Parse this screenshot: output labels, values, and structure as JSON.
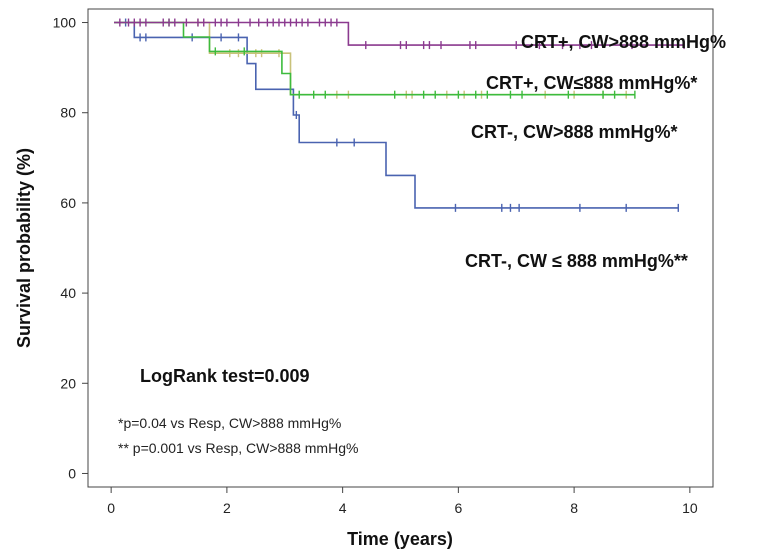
{
  "chart_data": {
    "type": "line",
    "step": true,
    "xlabel": "Time (years)",
    "ylabel": "Survival probability (%)",
    "xlim": [
      -0.4,
      10.4
    ],
    "ylim": [
      -3,
      103
    ],
    "xticks": [
      0,
      2,
      4,
      6,
      8,
      10
    ],
    "yticks": [
      0,
      20,
      40,
      60,
      80,
      100
    ],
    "grid": false,
    "series": [
      {
        "name": "CRT+, CW>888 mmHg%",
        "color": "#8B3A8F",
        "steps": [
          [
            0.05,
            100
          ],
          [
            4.1,
            100
          ],
          [
            4.1,
            95
          ],
          [
            9.9,
            95
          ]
        ],
        "censors": [
          [
            0.15,
            100
          ],
          [
            0.3,
            100
          ],
          [
            0.4,
            100
          ],
          [
            0.5,
            100
          ],
          [
            0.6,
            100
          ],
          [
            0.9,
            100
          ],
          [
            1.0,
            100
          ],
          [
            1.1,
            100
          ],
          [
            1.3,
            100
          ],
          [
            1.5,
            100
          ],
          [
            1.6,
            100
          ],
          [
            1.8,
            100
          ],
          [
            1.9,
            100
          ],
          [
            2.0,
            100
          ],
          [
            2.2,
            100
          ],
          [
            2.4,
            100
          ],
          [
            2.55,
            100
          ],
          [
            2.7,
            100
          ],
          [
            2.8,
            100
          ],
          [
            2.9,
            100
          ],
          [
            3.0,
            100
          ],
          [
            3.1,
            100
          ],
          [
            3.2,
            100
          ],
          [
            3.3,
            100
          ],
          [
            3.4,
            100
          ],
          [
            3.6,
            100
          ],
          [
            3.7,
            100
          ],
          [
            3.8,
            100
          ],
          [
            3.9,
            100
          ],
          [
            4.4,
            95
          ],
          [
            5.0,
            95
          ],
          [
            5.1,
            95
          ],
          [
            5.4,
            95
          ],
          [
            5.5,
            95
          ],
          [
            5.7,
            95
          ],
          [
            6.2,
            95
          ],
          [
            6.3,
            95
          ],
          [
            7.0,
            95
          ],
          [
            7.4,
            95
          ],
          [
            7.8,
            95
          ],
          [
            8.1,
            95
          ],
          [
            8.3,
            95
          ],
          [
            9.0,
            95
          ],
          [
            9.9,
            95
          ]
        ]
      },
      {
        "name": "CRT+, CW≤888 mmHg%*",
        "color": "#3DBB3D",
        "steps": [
          [
            0.05,
            100
          ],
          [
            1.25,
            100
          ],
          [
            1.25,
            96.8
          ],
          [
            1.7,
            96.8
          ],
          [
            1.7,
            93.6
          ],
          [
            2.95,
            93.6
          ],
          [
            2.95,
            88.7
          ],
          [
            3.1,
            88.7
          ],
          [
            3.1,
            84
          ],
          [
            9.05,
            84
          ]
        ],
        "censors": [
          [
            1.0,
            100
          ],
          [
            1.8,
            93.6
          ],
          [
            2.3,
            93.6
          ],
          [
            3.25,
            84
          ],
          [
            3.5,
            84
          ],
          [
            3.7,
            84
          ],
          [
            4.9,
            84
          ],
          [
            5.4,
            84
          ],
          [
            5.6,
            84
          ],
          [
            6.0,
            84
          ],
          [
            6.3,
            84
          ],
          [
            6.5,
            84
          ],
          [
            6.9,
            84
          ],
          [
            7.1,
            84
          ],
          [
            7.9,
            84
          ],
          [
            8.5,
            84
          ],
          [
            8.7,
            84
          ],
          [
            9.05,
            84
          ]
        ]
      },
      {
        "name": "CRT-, CW>888 mmHg%*",
        "color": "#C9C27A",
        "steps": [
          [
            0.05,
            100
          ],
          [
            1.7,
            100
          ],
          [
            1.7,
            93.2
          ],
          [
            3.1,
            93.2
          ],
          [
            3.1,
            84
          ],
          [
            8.9,
            84
          ]
        ],
        "censors": [
          [
            1.5,
            100
          ],
          [
            2.05,
            93.2
          ],
          [
            2.2,
            93.2
          ],
          [
            2.5,
            93.2
          ],
          [
            2.6,
            93.2
          ],
          [
            2.9,
            93.2
          ],
          [
            3.9,
            84
          ],
          [
            4.1,
            84
          ],
          [
            5.1,
            84
          ],
          [
            5.2,
            84
          ],
          [
            5.8,
            84
          ],
          [
            6.1,
            84
          ],
          [
            6.4,
            84
          ],
          [
            7.5,
            84
          ],
          [
            8.0,
            84
          ],
          [
            8.5,
            84
          ],
          [
            8.9,
            84
          ]
        ]
      },
      {
        "name": "CRT-, CW ≤ 888 mmHg%**",
        "color": "#4A63B0",
        "steps": [
          [
            0.05,
            100
          ],
          [
            0.4,
            100
          ],
          [
            0.4,
            96.7
          ],
          [
            2.35,
            96.7
          ],
          [
            2.35,
            90.9
          ],
          [
            2.5,
            90.9
          ],
          [
            2.5,
            85.2
          ],
          [
            3.15,
            85.2
          ],
          [
            3.15,
            79.5
          ],
          [
            3.25,
            79.5
          ],
          [
            3.25,
            73.4
          ],
          [
            4.75,
            73.4
          ],
          [
            4.75,
            66.1
          ],
          [
            5.25,
            66.1
          ],
          [
            5.25,
            58.9
          ],
          [
            9.8,
            58.9
          ]
        ],
        "censors": [
          [
            0.25,
            100
          ],
          [
            0.5,
            96.7
          ],
          [
            0.6,
            96.7
          ],
          [
            1.4,
            96.7
          ],
          [
            1.9,
            96.7
          ],
          [
            2.2,
            96.7
          ],
          [
            3.2,
            79.5
          ],
          [
            3.9,
            73.4
          ],
          [
            4.2,
            73.4
          ],
          [
            5.95,
            58.9
          ],
          [
            6.75,
            58.9
          ],
          [
            6.9,
            58.9
          ],
          [
            7.05,
            58.9
          ],
          [
            8.1,
            58.9
          ],
          [
            8.9,
            58.9
          ],
          [
            9.8,
            58.9
          ]
        ]
      }
    ]
  },
  "annotations": {
    "logrank": "LogRank test=0.009",
    "footnote_1": "*p=0.04  vs Resp, CW>888 mmHg%",
    "footnote_2": "** p=0.001 vs Resp, CW>888 mmHg%"
  }
}
